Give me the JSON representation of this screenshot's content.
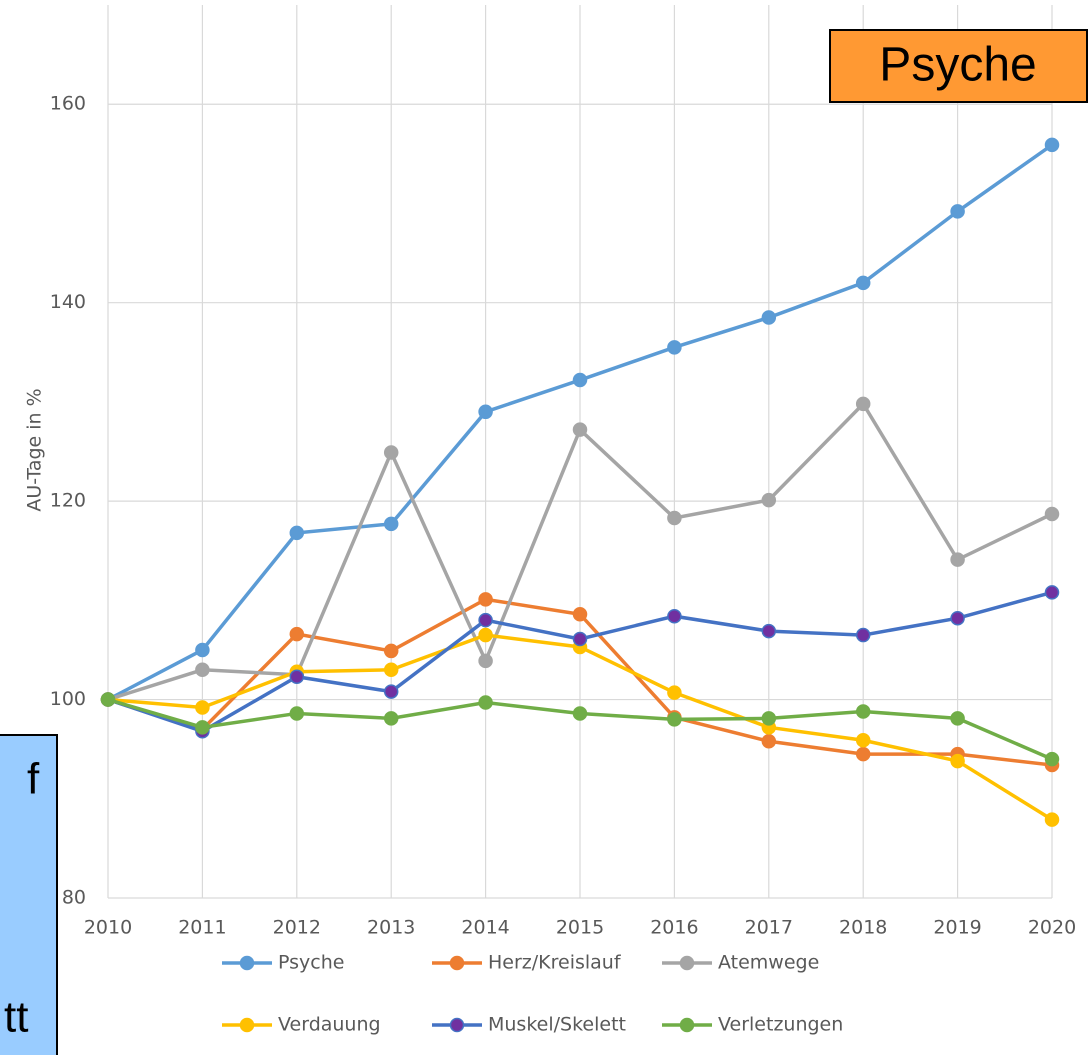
{
  "chart_data": {
    "type": "line",
    "y_label": "AU-Tage in %",
    "x": [
      2010,
      2011,
      2012,
      2013,
      2014,
      2015,
      2016,
      2017,
      2018,
      2019,
      2020
    ],
    "xlim": [
      2010,
      2020
    ],
    "xticks": [
      2010,
      2011,
      2012,
      2013,
      2014,
      2015,
      2016,
      2017,
      2018,
      2019,
      2020
    ],
    "ylim": [
      80,
      170
    ],
    "yticks": [
      80,
      100,
      120,
      140,
      160
    ],
    "grid": true,
    "legend": "bottom",
    "series": [
      {
        "name": "Psyche",
        "color": "#5b9bd5",
        "values": [
          100,
          105.0,
          116.8,
          117.7,
          129.0,
          132.2,
          135.5,
          138.5,
          142.0,
          149.2,
          155.9
        ]
      },
      {
        "name": "Herz/Kreislauf",
        "color": "#ed7d31",
        "values": [
          100,
          97.0,
          106.6,
          104.9,
          110.1,
          108.6,
          98.2,
          95.8,
          94.5,
          94.5,
          93.4
        ]
      },
      {
        "name": "Atemwege",
        "color": "#a5a5a5",
        "values": [
          100,
          103.0,
          102.5,
          124.9,
          103.9,
          127.2,
          118.3,
          120.1,
          129.8,
          114.1,
          118.7
        ]
      },
      {
        "name": "Verdauung",
        "color": "#ffc000",
        "values": [
          100,
          99.2,
          102.8,
          103.0,
          106.5,
          105.3,
          100.7,
          97.2,
          95.9,
          93.8,
          87.9
        ]
      },
      {
        "name": "Muskel/Skelett",
        "color": "#4472c4",
        "marker_color": "#7030a0",
        "values": [
          100,
          96.8,
          102.3,
          100.8,
          108.0,
          106.1,
          108.4,
          106.9,
          106.5,
          108.2,
          110.8
        ]
      },
      {
        "name": "Verletzungen",
        "color": "#70ad47",
        "values": [
          100,
          97.2,
          98.6,
          98.1,
          99.7,
          98.6,
          98.0,
          98.1,
          98.8,
          98.1,
          94.0
        ]
      }
    ],
    "overlays": {
      "highlight": "Psyche",
      "side_texts": [
        "f",
        "tt"
      ]
    }
  }
}
